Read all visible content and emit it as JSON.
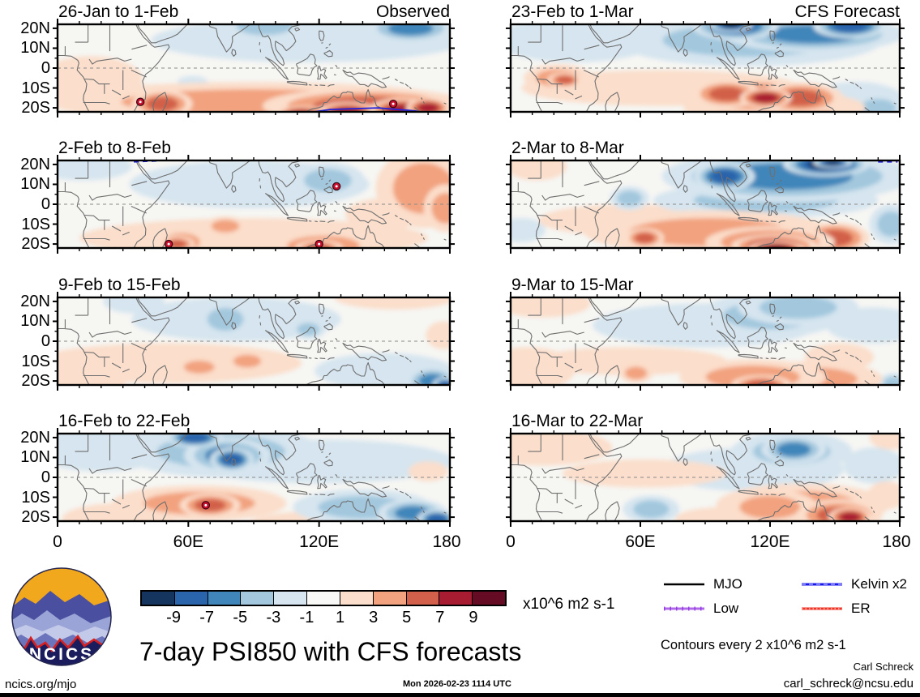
{
  "branding": {
    "logo_text": "NCICS",
    "site": "ncics.org/mjo"
  },
  "footer": {
    "main_title": "7-day PSI850 with CFS forecasts",
    "units_label": "x10^6 m2 s-1",
    "contour_note": "Contours every 2 x10^6 m2 s-1",
    "timestamp": "Mon 2026-02-23 1114 UTC",
    "credit_name": "Carl Schreck",
    "credit_email": "carl_schreck@ncsu.edu"
  },
  "legend": {
    "items": [
      {
        "label": "MJO",
        "color": "#000000",
        "style": "solid"
      },
      {
        "label": "Kelvin x2",
        "color": "#1818ee",
        "style": "dashed"
      },
      {
        "label": "Low",
        "color": "#b06ae8",
        "style": "ticked"
      },
      {
        "label": "ER",
        "color": "#f03022",
        "style": "dotted"
      }
    ]
  },
  "chart_data": {
    "type": "heatmap",
    "title": "7-day PSI850 with CFS forecasts",
    "variable": "PSI850 anomaly",
    "units": "x10^6 m2 s-1",
    "contour_interval": "Contours every 2 x10^6 m2 s-1",
    "column_headers": [
      "Observed",
      "CFS Forecast"
    ],
    "x_axis": {
      "tick_labels": [
        "0",
        "60E",
        "120E",
        "180"
      ],
      "tick_lons": [
        0,
        60,
        120,
        180
      ],
      "range_deg": [
        0,
        180
      ]
    },
    "y_axis": {
      "tick_labels": [
        "20N",
        "10N",
        "0",
        "10S",
        "20S"
      ],
      "tick_lats": [
        20,
        10,
        0,
        -10,
        -20
      ],
      "range_deg": [
        -22,
        22
      ]
    },
    "colorbar": {
      "tick_labels": [
        "-9",
        "-7",
        "-5",
        "-3",
        "-1",
        "1",
        "3",
        "5",
        "7",
        "9"
      ],
      "neg_colors": [
        "#d6e5ef",
        "#a3c8de",
        "#4186ba",
        "#2a64ab",
        "#16355e"
      ],
      "pos_colors": [
        "#fbdecb",
        "#f2a27e",
        "#d2604a",
        "#a81c32",
        "#650c24"
      ],
      "colors": [
        "#16355e",
        "#2a64ab",
        "#4186ba",
        "#a3c8de",
        "#d6e5ef",
        "#f8f8f6",
        "#fbdecb",
        "#f2a27e",
        "#d2604a",
        "#a81c32",
        "#650c24"
      ]
    },
    "panels": [
      {
        "title": "26-Jan to 1-Feb",
        "corner_label": "Observed",
        "column": 0,
        "row": 0,
        "anomaly_centers": [
          [
            115,
            14,
            -2,
            72,
            11
          ],
          [
            95,
            21,
            -3,
            20,
            7
          ],
          [
            162,
            20,
            -5,
            20,
            7
          ],
          [
            62,
            -7,
            -2,
            7,
            3
          ],
          [
            15,
            -6,
            2,
            24,
            12
          ],
          [
            90,
            -17,
            3,
            95,
            10
          ],
          [
            48,
            -18,
            5,
            14,
            7
          ],
          [
            142,
            -19,
            5,
            48,
            9
          ],
          [
            133,
            -22,
            7,
            14,
            5
          ],
          [
            158,
            -21,
            7,
            15,
            6
          ],
          [
            170,
            -20,
            8,
            10,
            5
          ],
          [
            112,
            -23,
            7,
            12,
            4
          ]
        ],
        "wave_lines": [
          {
            "type": "kelvin",
            "color": "#2222dd",
            "dash": "none",
            "points": [
              [
                108,
                -23.5
              ],
              [
                125,
                -20.8
              ],
              [
                147,
                -20
              ],
              [
                164,
                -21.5
              ],
              [
                173,
                -23.8
              ]
            ]
          }
        ],
        "cyclones": [
          [
            38,
            -17
          ],
          [
            154,
            -18
          ]
        ]
      },
      {
        "title": "2-Feb to 8-Feb",
        "column": 0,
        "row": 1,
        "anomaly_centers": [
          [
            12,
            19,
            -2,
            22,
            7
          ],
          [
            88,
            10,
            -2,
            55,
            12
          ],
          [
            124,
            12,
            -4,
            17,
            9
          ],
          [
            168,
            8,
            3,
            22,
            20
          ],
          [
            178,
            -2,
            3,
            10,
            12
          ],
          [
            90,
            -17,
            2,
            80,
            10
          ],
          [
            57,
            -19,
            4,
            13,
            7
          ],
          [
            55,
            -20,
            5,
            8,
            4
          ],
          [
            77,
            -11,
            3,
            10,
            5
          ],
          [
            122,
            -21,
            4,
            26,
            8
          ],
          [
            120,
            -22,
            5,
            11,
            4
          ],
          [
            150,
            -5,
            2,
            18,
            8
          ]
        ],
        "wave_lines": [
          {
            "type": "kelvin",
            "color": "#2222dd",
            "dash": "6 5",
            "points": [
              [
                35,
                21.3
              ],
              [
                46,
                21.8
              ]
            ]
          }
        ],
        "cyclones": [
          [
            51,
            -20
          ],
          [
            120,
            -20
          ],
          [
            128,
            9
          ]
        ]
      },
      {
        "title": "9-Feb to 15-Feb",
        "column": 0,
        "row": 2,
        "anomaly_centers": [
          [
            35,
            20,
            -2,
            14,
            6
          ],
          [
            82,
            11,
            -2,
            48,
            11
          ],
          [
            77,
            11,
            -4,
            13,
            9
          ],
          [
            115,
            6,
            -3,
            8,
            5
          ],
          [
            150,
            -15,
            -2,
            32,
            9
          ],
          [
            172,
            -20,
            -5,
            12,
            7
          ],
          [
            178,
            -22,
            -7,
            6,
            4
          ],
          [
            50,
            -11,
            2,
            62,
            10
          ],
          [
            10,
            -19,
            2,
            22,
            9
          ],
          [
            65,
            -13,
            4,
            11,
            5
          ],
          [
            87,
            -10,
            4,
            10,
            5
          ],
          [
            155,
            22,
            2,
            28,
            6
          ],
          [
            177,
            3,
            2,
            8,
            7
          ]
        ],
        "wave_lines": [],
        "cyclones": []
      },
      {
        "title": "16-Feb to 22-Feb",
        "column": 0,
        "row": 3,
        "anomaly_centers": [
          [
            20,
            14,
            -2,
            32,
            11
          ],
          [
            120,
            8,
            -2,
            62,
            11
          ],
          [
            75,
            13,
            -4,
            46,
            13
          ],
          [
            78,
            11,
            -6,
            20,
            9
          ],
          [
            63,
            20,
            -8,
            13,
            5
          ],
          [
            80,
            9,
            -7,
            10,
            6
          ],
          [
            140,
            -15,
            -3,
            32,
            9
          ],
          [
            163,
            -18,
            -6,
            16,
            7
          ],
          [
            174,
            -21,
            -8,
            9,
            5
          ],
          [
            65,
            -13,
            3,
            40,
            9
          ],
          [
            70,
            -14,
            5,
            14,
            6
          ],
          [
            28,
            -21,
            2,
            26,
            8
          ],
          [
            120,
            -23,
            2,
            32,
            6
          ],
          [
            170,
            3,
            2,
            9,
            5
          ]
        ],
        "wave_lines": [],
        "cyclones": [
          [
            68,
            -14
          ]
        ]
      },
      {
        "title": "23-Feb to 1-Mar",
        "corner_label": "CFS Forecast",
        "column": 1,
        "row": 0,
        "anomaly_centers": [
          [
            30,
            14,
            -2,
            38,
            11
          ],
          [
            110,
            14,
            -4,
            62,
            13
          ],
          [
            104,
            21,
            -7,
            20,
            7
          ],
          [
            102,
            22,
            -9,
            10,
            4
          ],
          [
            140,
            17,
            -5,
            42,
            9
          ],
          [
            157,
            21,
            -8,
            17,
            6
          ],
          [
            160,
            -16,
            -2,
            22,
            9
          ],
          [
            170,
            -20,
            -4,
            13,
            7
          ],
          [
            70,
            -10,
            2,
            65,
            9
          ],
          [
            22,
            -5,
            4,
            16,
            7
          ],
          [
            25,
            -6,
            5,
            8,
            4
          ],
          [
            112,
            -14,
            5,
            30,
            9
          ],
          [
            100,
            -13,
            5,
            16,
            7
          ],
          [
            134,
            -15,
            6,
            20,
            8
          ],
          [
            122,
            -20,
            4,
            42,
            9
          ],
          [
            118,
            -15,
            7,
            12,
            5
          ]
        ],
        "wave_lines": [],
        "cyclones": []
      },
      {
        "title": "2-Mar to 8-Mar",
        "column": 1,
        "row": 1,
        "anomaly_centers": [
          [
            128,
            14,
            -5,
            58,
            13
          ],
          [
            99,
            14,
            -7,
            14,
            7
          ],
          [
            146,
            20,
            -9,
            20,
            6
          ],
          [
            149,
            21,
            -10,
            9,
            3
          ],
          [
            118,
            2,
            -3,
            52,
            9
          ],
          [
            55,
            3,
            -3,
            9,
            6
          ],
          [
            176,
            -10,
            -3,
            10,
            10
          ],
          [
            5,
            -13,
            -2,
            11,
            6
          ],
          [
            12,
            19,
            2,
            14,
            7
          ],
          [
            92,
            -14,
            3,
            58,
            11
          ],
          [
            62,
            -17,
            5,
            9,
            5
          ],
          [
            120,
            -19,
            6,
            30,
            8
          ],
          [
            122,
            -21,
            8,
            20,
            6
          ],
          [
            123,
            -22.5,
            10,
            13,
            4
          ],
          [
            150,
            -17,
            5,
            16,
            8
          ],
          [
            55,
            -8,
            2,
            42,
            8
          ]
        ],
        "wave_lines": [
          {
            "type": "kelvin",
            "color": "#2222dd",
            "dash": "6 5",
            "points": [
              [
                170,
                21.3
              ],
              [
                179,
                21.3
              ]
            ]
          }
        ],
        "cyclones": []
      },
      {
        "title": "9-Mar to 15-Mar",
        "column": 1,
        "row": 2,
        "anomaly_centers": [
          [
            120,
            13,
            -3,
            34,
            11
          ],
          [
            133,
            17,
            -4,
            28,
            9
          ],
          [
            90,
            8,
            -2,
            52,
            11
          ],
          [
            168,
            8,
            -2,
            22,
            9
          ],
          [
            177,
            -21,
            -3,
            7,
            5
          ],
          [
            15,
            19,
            2,
            22,
            7
          ],
          [
            8,
            -14,
            2,
            22,
            11
          ],
          [
            58,
            -16,
            4,
            8,
            5
          ],
          [
            55,
            -10,
            2,
            45,
            7
          ],
          [
            112,
            -18,
            4,
            34,
            9
          ],
          [
            116,
            -22,
            6,
            14,
            5
          ],
          [
            152,
            -8,
            2,
            16,
            7
          ],
          [
            140,
            -19,
            3,
            32,
            9
          ]
        ],
        "wave_lines": [],
        "cyclones": []
      },
      {
        "title": "16-Mar to 22-Mar",
        "column": 1,
        "row": 3,
        "anomaly_centers": [
          [
            131,
            14,
            -5,
            15,
            7
          ],
          [
            130,
            13,
            -3,
            28,
            10
          ],
          [
            112,
            4,
            -2,
            42,
            11
          ],
          [
            168,
            6,
            -2,
            14,
            9
          ],
          [
            65,
            -16,
            -3,
            13,
            7
          ],
          [
            15,
            15,
            2,
            32,
            9
          ],
          [
            62,
            2,
            2,
            38,
            7
          ],
          [
            176,
            20,
            2,
            10,
            6
          ],
          [
            135,
            -14,
            3,
            40,
            11
          ],
          [
            120,
            -15,
            4,
            22,
            9
          ],
          [
            152,
            -19,
            5,
            20,
            8
          ],
          [
            157,
            -20,
            7,
            10,
            5
          ],
          [
            98,
            -21,
            2,
            22,
            6
          ],
          [
            174,
            -9,
            2,
            9,
            7
          ]
        ],
        "wave_lines": [],
        "cyclones": []
      }
    ]
  }
}
